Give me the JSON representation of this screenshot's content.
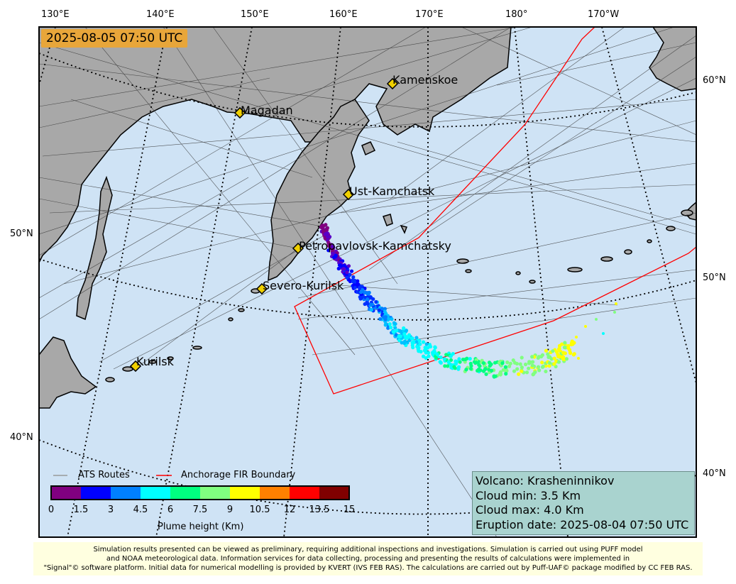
{
  "timestamp": "2025-08-05 07:50 UTC",
  "lon_labels_top": [
    "130°E",
    "140°E",
    "150°E",
    "160°E",
    "170°E",
    "180°",
    "170°W"
  ],
  "lat_labels_left": [
    "50°N",
    "40°N"
  ],
  "lat_labels_right": [
    "60°N",
    "50°N",
    "40°N"
  ],
  "cities": [
    {
      "name": "Kamenskoe"
    },
    {
      "name": "Magadan"
    },
    {
      "name": "Ust-Kamchatsk"
    },
    {
      "name": "Petropavlovsk-Kamchatsky"
    },
    {
      "name": "Severo-Kurilsk"
    },
    {
      "name": "Kurilsk"
    }
  ],
  "legend": {
    "ats_routes": "ATS Routes",
    "fir_boundary": "Anchorage FIR Boundary",
    "colorbar_label": "Plume height (Km)",
    "colorbar_ticks": [
      "0",
      "1.5",
      "3",
      "4.5",
      "6",
      "7.5",
      "9",
      "10.5",
      "12",
      "13.5",
      "15"
    ],
    "colorbar_colors": [
      "#800080",
      "#0000ff",
      "#0080ff",
      "#00ffff",
      "#00ff80",
      "#80ff80",
      "#ffff00",
      "#ff8000",
      "#ff0000",
      "#800000"
    ]
  },
  "info": {
    "volcano": "Volcano: Krasheninnikov",
    "cloud_min": "Cloud min: 3.5 Km",
    "cloud_max": "Cloud max: 4.0 Km",
    "eruption_date": "Eruption date: 2025-08-04 07:50 UTC"
  },
  "footer": {
    "line1": "Simulation results presented can be viewed as preliminary, requiring additional inspections and investigations. Simulation is carried out using PUFF model",
    "line2": "and NOAA meteorological data. Information services for data collecting, processing and presenting the results of calculations were implemented in",
    "line3": "\"Signal\"© software platform. Initial data for numerical modelling is provided by KVERT (IVS FEB RAS). The calculations are carried out by Puff-UAF© package modified by CC FEB RAS."
  },
  "colors": {
    "ocean": "#cfe3f5",
    "land": "#a8a8a8",
    "fir": "#ff0000",
    "routes": "#333333",
    "timebox": "#e8a63a",
    "infobox": "#a9d3cf",
    "footer": "#ffffe0"
  }
}
